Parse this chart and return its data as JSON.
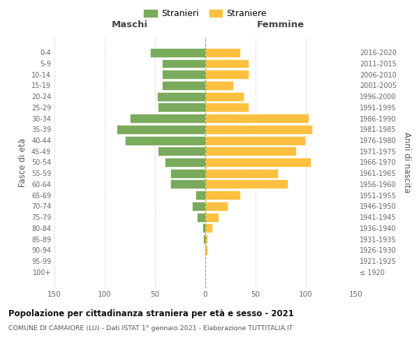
{
  "age_groups": [
    "100+",
    "95-99",
    "90-94",
    "85-89",
    "80-84",
    "75-79",
    "70-74",
    "65-69",
    "60-64",
    "55-59",
    "50-54",
    "45-49",
    "40-44",
    "35-39",
    "30-34",
    "25-29",
    "20-24",
    "15-19",
    "10-14",
    "5-9",
    "0-4"
  ],
  "birth_years": [
    "≤ 1920",
    "1921-1925",
    "1926-1930",
    "1931-1935",
    "1936-1940",
    "1941-1945",
    "1946-1950",
    "1951-1955",
    "1956-1960",
    "1961-1965",
    "1966-1970",
    "1971-1975",
    "1976-1980",
    "1981-1985",
    "1986-1990",
    "1991-1995",
    "1996-2000",
    "2001-2005",
    "2006-2010",
    "2011-2015",
    "2016-2020"
  ],
  "maschi": [
    0,
    0,
    1,
    2,
    3,
    8,
    13,
    10,
    35,
    35,
    40,
    47,
    80,
    88,
    75,
    47,
    48,
    43,
    43,
    43,
    55
  ],
  "femmine": [
    0,
    0,
    2,
    2,
    7,
    13,
    22,
    35,
    82,
    72,
    105,
    90,
    99,
    106,
    103,
    43,
    38,
    28,
    43,
    43,
    35
  ],
  "color_maschi": "#7aaa5c",
  "color_femmine": "#ffc040",
  "title": "Popolazione per cittadinanza straniera per età e sesso - 2021",
  "subtitle": "COMUNE DI CAMAIORE (LU) - Dati ISTAT 1° gennaio 2021 - Elaborazione TUTTITALIA.IT",
  "label_left": "Maschi",
  "label_right": "Femmine",
  "ylabel_left": "Fasce di età",
  "ylabel_right": "Anni di nascita",
  "legend_maschi": "Stranieri",
  "legend_femmine": "Straniere",
  "xlim": 150,
  "background_color": "#ffffff",
  "grid_color": "#cccccc"
}
